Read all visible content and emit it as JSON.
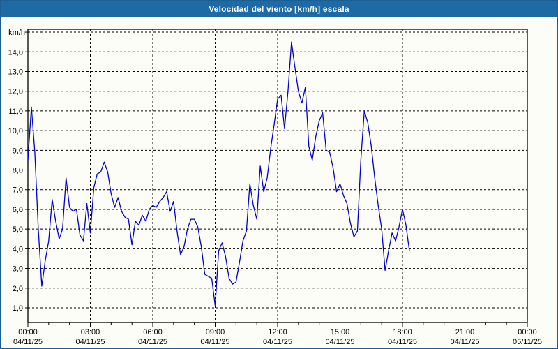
{
  "window": {
    "title": "Velocidad del viento [km/h] escala"
  },
  "chart_data": {
    "type": "line",
    "title": "Velocidad del viento [km/h] escala",
    "ylabel": "km/h",
    "xlabel": "",
    "ylim": [
      0,
      15
    ],
    "x_range_hours": [
      0,
      24
    ],
    "grid": "dashed-black",
    "legend_position": "none",
    "series_name": "Velocidad del viento",
    "series_color": "#0000cc",
    "frame_color": "#000000",
    "titlebar_color": "#1d6aa5",
    "outer_border_color": "#1c5e91",
    "sample_interval_minutes": 10,
    "y_tick_labels": [
      "1,0",
      "2,0",
      "3,0",
      "4,0",
      "5,0",
      "6,0",
      "7,0",
      "8,0",
      "9,0",
      "10,0",
      "11,0",
      "12,0",
      "13,0",
      "14,0"
    ],
    "x_ticks": [
      {
        "hour": 0,
        "time": "00:00",
        "date": "04/11/25"
      },
      {
        "hour": 3,
        "time": "03:00",
        "date": "04/11/25"
      },
      {
        "hour": 6,
        "time": "06:00",
        "date": "04/11/25"
      },
      {
        "hour": 9,
        "time": "09:00",
        "date": "04/11/25"
      },
      {
        "hour": 12,
        "time": "12:00",
        "date": "04/11/25"
      },
      {
        "hour": 15,
        "time": "15:00",
        "date": "04/11/25"
      },
      {
        "hour": 18,
        "time": "18:00",
        "date": "04/11/25"
      },
      {
        "hour": 21,
        "time": "21:00",
        "date": "04/11/25"
      },
      {
        "hour": 24,
        "time": "00:00",
        "date": "05/11/25"
      }
    ],
    "points": [
      [
        0,
        8.5
      ],
      [
        10,
        11.2
      ],
      [
        20,
        8.9
      ],
      [
        30,
        5.0
      ],
      [
        40,
        2.1
      ],
      [
        50,
        3.4
      ],
      [
        60,
        4.4
      ],
      [
        70,
        6.5
      ],
      [
        80,
        5.4
      ],
      [
        90,
        4.5
      ],
      [
        100,
        5.0
      ],
      [
        110,
        7.6
      ],
      [
        120,
        6.1
      ],
      [
        130,
        5.9
      ],
      [
        140,
        6.0
      ],
      [
        150,
        4.7
      ],
      [
        160,
        4.4
      ],
      [
        170,
        6.3
      ],
      [
        180,
        4.8
      ],
      [
        190,
        7.1
      ],
      [
        200,
        7.8
      ],
      [
        210,
        7.9
      ],
      [
        220,
        8.4
      ],
      [
        230,
        7.9
      ],
      [
        240,
        6.8
      ],
      [
        250,
        6.1
      ],
      [
        260,
        6.6
      ],
      [
        270,
        5.9
      ],
      [
        280,
        5.6
      ],
      [
        290,
        5.5
      ],
      [
        300,
        4.2
      ],
      [
        310,
        5.4
      ],
      [
        320,
        5.2
      ],
      [
        330,
        5.7
      ],
      [
        340,
        5.4
      ],
      [
        350,
        6.0
      ],
      [
        360,
        6.2
      ],
      [
        370,
        6.1
      ],
      [
        380,
        6.4
      ],
      [
        390,
        6.6
      ],
      [
        400,
        6.9
      ],
      [
        410,
        5.9
      ],
      [
        420,
        6.4
      ],
      [
        430,
        4.9
      ],
      [
        440,
        3.7
      ],
      [
        450,
        4.1
      ],
      [
        460,
        5.0
      ],
      [
        470,
        5.5
      ],
      [
        480,
        5.5
      ],
      [
        490,
        5.1
      ],
      [
        500,
        4.1
      ],
      [
        510,
        2.7
      ],
      [
        520,
        2.6
      ],
      [
        530,
        2.5
      ],
      [
        540,
        1.1
      ],
      [
        550,
        3.9
      ],
      [
        560,
        4.3
      ],
      [
        570,
        3.6
      ],
      [
        580,
        2.5
      ],
      [
        590,
        2.2
      ],
      [
        600,
        2.3
      ],
      [
        610,
        3.3
      ],
      [
        620,
        4.4
      ],
      [
        630,
        4.9
      ],
      [
        640,
        7.3
      ],
      [
        650,
        6.2
      ],
      [
        660,
        5.5
      ],
      [
        670,
        8.2
      ],
      [
        680,
        6.9
      ],
      [
        690,
        7.6
      ],
      [
        700,
        9.1
      ],
      [
        710,
        10.3
      ],
      [
        720,
        11.6
      ],
      [
        730,
        11.8
      ],
      [
        740,
        10.1
      ],
      [
        750,
        12.0
      ],
      [
        760,
        14.5
      ],
      [
        770,
        13.2
      ],
      [
        780,
        12.0
      ],
      [
        790,
        11.4
      ],
      [
        800,
        12.2
      ],
      [
        810,
        9.2
      ],
      [
        820,
        8.5
      ],
      [
        830,
        9.7
      ],
      [
        840,
        10.5
      ],
      [
        850,
        10.9
      ],
      [
        860,
        9.0
      ],
      [
        870,
        8.9
      ],
      [
        880,
        8.1
      ],
      [
        890,
        6.9
      ],
      [
        900,
        7.3
      ],
      [
        910,
        6.7
      ],
      [
        920,
        6.3
      ],
      [
        930,
        5.3
      ],
      [
        940,
        4.6
      ],
      [
        950,
        4.9
      ],
      [
        960,
        8.5
      ],
      [
        970,
        11.0
      ],
      [
        980,
        10.4
      ],
      [
        990,
        9.2
      ],
      [
        1000,
        7.6
      ],
      [
        1010,
        6.2
      ],
      [
        1020,
        5.0
      ],
      [
        1030,
        2.9
      ],
      [
        1040,
        3.9
      ],
      [
        1050,
        4.8
      ],
      [
        1060,
        4.4
      ],
      [
        1070,
        5.1
      ],
      [
        1080,
        6.0
      ],
      [
        1090,
        5.2
      ],
      [
        1100,
        3.9
      ]
    ]
  }
}
